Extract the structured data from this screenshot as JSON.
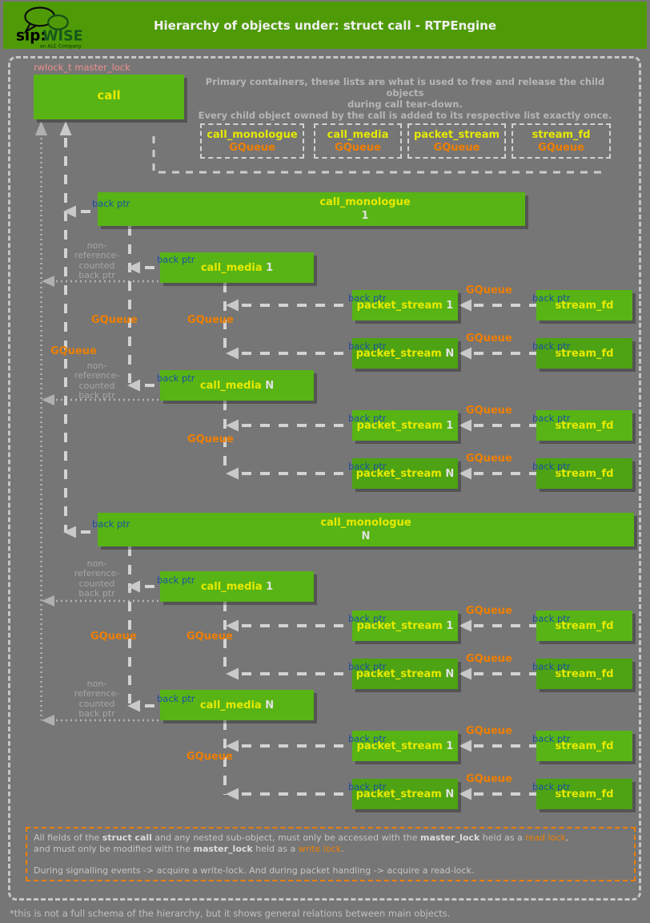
{
  "header": {
    "title": "Hierarchy of objects under: struct call - RTPEngine",
    "logo_sip": "sip:",
    "logo_wise": "WISE",
    "logo_sub": "an ALE Company"
  },
  "master_lock_label": "rwlock_t master_lock",
  "intro": {
    "line1": "Primary containers, these lists are what is used to free and release the child objects",
    "line2": "during call tear-down.",
    "line3": "Every child object owned by the call is added to its respective list exactly once."
  },
  "containers": [
    {
      "name": "call_monologue",
      "type": "GQueue"
    },
    {
      "name": "call_media",
      "type": "GQueue"
    },
    {
      "name": "packet_stream",
      "type": "GQueue"
    },
    {
      "name": "stream_fd",
      "type": "GQueue"
    }
  ],
  "labels": {
    "back_ptr": "back ptr",
    "gqueue": "GQueue",
    "non_ref_lines": [
      "non-",
      "reference-",
      "counted",
      "back ptr"
    ]
  },
  "nodes": [
    {
      "label": "call"
    },
    {
      "label": "call_monologue",
      "num": "1"
    },
    {
      "label": "call_media",
      "num": "1"
    },
    {
      "label": "packet_stream",
      "num": "1"
    },
    {
      "label": "stream_fd"
    },
    {
      "label": "packet_stream",
      "num": "N"
    },
    {
      "label": "stream_fd"
    },
    {
      "label": "call_media",
      "num": "N"
    },
    {
      "label": "packet_stream",
      "num": "1"
    },
    {
      "label": "stream_fd"
    },
    {
      "label": "packet_stream",
      "num": "N"
    },
    {
      "label": "stream_fd"
    },
    {
      "label": "call_monologue",
      "num": "N"
    },
    {
      "label": "call_media",
      "num": "1"
    },
    {
      "label": "packet_stream",
      "num": "1"
    },
    {
      "label": "stream_fd"
    },
    {
      "label": "packet_stream",
      "num": "N"
    },
    {
      "label": "stream_fd"
    },
    {
      "label": "call_media",
      "num": "N"
    },
    {
      "label": "packet_stream",
      "num": "1"
    },
    {
      "label": "stream_fd"
    },
    {
      "label": "packet_stream",
      "num": "N"
    },
    {
      "label": "stream_fd"
    }
  ],
  "footer": {
    "lines": [
      [
        {
          "t": "All fields of the ",
          "s": "n"
        },
        {
          "t": "struct call",
          "s": "b"
        },
        {
          "t": " and any nested sub-object, must only be accessed with the ",
          "s": "n"
        },
        {
          "t": "master_lock",
          "s": "b"
        },
        {
          "t": " held as a ",
          "s": "n"
        },
        {
          "t": "read lock",
          "s": "o"
        },
        {
          "t": ",",
          "s": "n"
        }
      ],
      [
        {
          "t": "and must only be modified with the ",
          "s": "n"
        },
        {
          "t": "master_lock",
          "s": "b"
        },
        {
          "t": " held as a ",
          "s": "n"
        },
        {
          "t": "write lock",
          "s": "o"
        },
        {
          "t": ".",
          "s": "n"
        }
      ],
      [],
      [
        {
          "t": "During signalling events -> acquire a write-lock. And during packet handling -> acquire a read-lock.",
          "s": "n"
        }
      ]
    ]
  },
  "note": "*this is not a full schema of the hierarchy, but it shows general relations between main objects.",
  "colors": {
    "background": "#767676",
    "header_green": "#4f9b07",
    "box_green": "#57b414",
    "box_green_dark": "#4da313",
    "label_yellow": "#e6e900",
    "gqueue_orange": "#ee7f00",
    "back_ptr_blue": "#1d4fa3",
    "master_lock_pink": "#ee8e8e"
  }
}
